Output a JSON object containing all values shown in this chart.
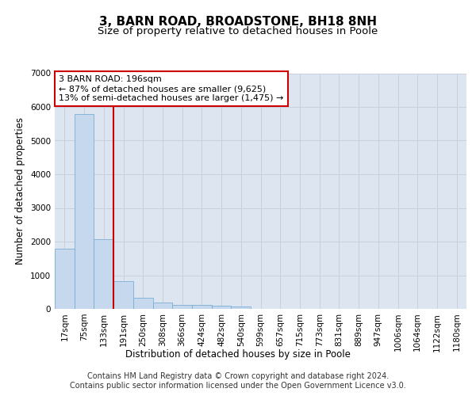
{
  "title": "3, BARN ROAD, BROADSTONE, BH18 8NH",
  "subtitle": "Size of property relative to detached houses in Poole",
  "xlabel": "Distribution of detached houses by size in Poole",
  "ylabel": "Number of detached properties",
  "categories": [
    "17sqm",
    "75sqm",
    "133sqm",
    "191sqm",
    "250sqm",
    "308sqm",
    "366sqm",
    "424sqm",
    "482sqm",
    "540sqm",
    "599sqm",
    "657sqm",
    "715sqm",
    "773sqm",
    "831sqm",
    "889sqm",
    "947sqm",
    "1006sqm",
    "1064sqm",
    "1122sqm",
    "1180sqm"
  ],
  "values": [
    1780,
    5780,
    2060,
    820,
    340,
    195,
    120,
    110,
    90,
    70,
    0,
    0,
    0,
    0,
    0,
    0,
    0,
    0,
    0,
    0,
    0
  ],
  "bar_color": "#c5d8ee",
  "bar_edge_color": "#7aafd4",
  "red_line_index": 3,
  "annotation_line1": "3 BARN ROAD: 196sqm",
  "annotation_line2": "← 87% of detached houses are smaller (9,625)",
  "annotation_line3": "13% of semi-detached houses are larger (1,475) →",
  "annotation_box_facecolor": "#ffffff",
  "annotation_box_edgecolor": "#cc0000",
  "red_line_color": "#cc0000",
  "ylim_max": 7000,
  "yticks": [
    0,
    1000,
    2000,
    3000,
    4000,
    5000,
    6000,
    7000
  ],
  "grid_color": "#c8d0dc",
  "plot_bg_color": "#dde6f0",
  "footer_line1": "Contains HM Land Registry data © Crown copyright and database right 2024.",
  "footer_line2": "Contains public sector information licensed under the Open Government Licence v3.0.",
  "title_fontsize": 11,
  "subtitle_fontsize": 9.5,
  "ylabel_fontsize": 8.5,
  "xlabel_fontsize": 8.5,
  "tick_fontsize": 7.5,
  "annotation_fontsize": 8,
  "footer_fontsize": 7
}
